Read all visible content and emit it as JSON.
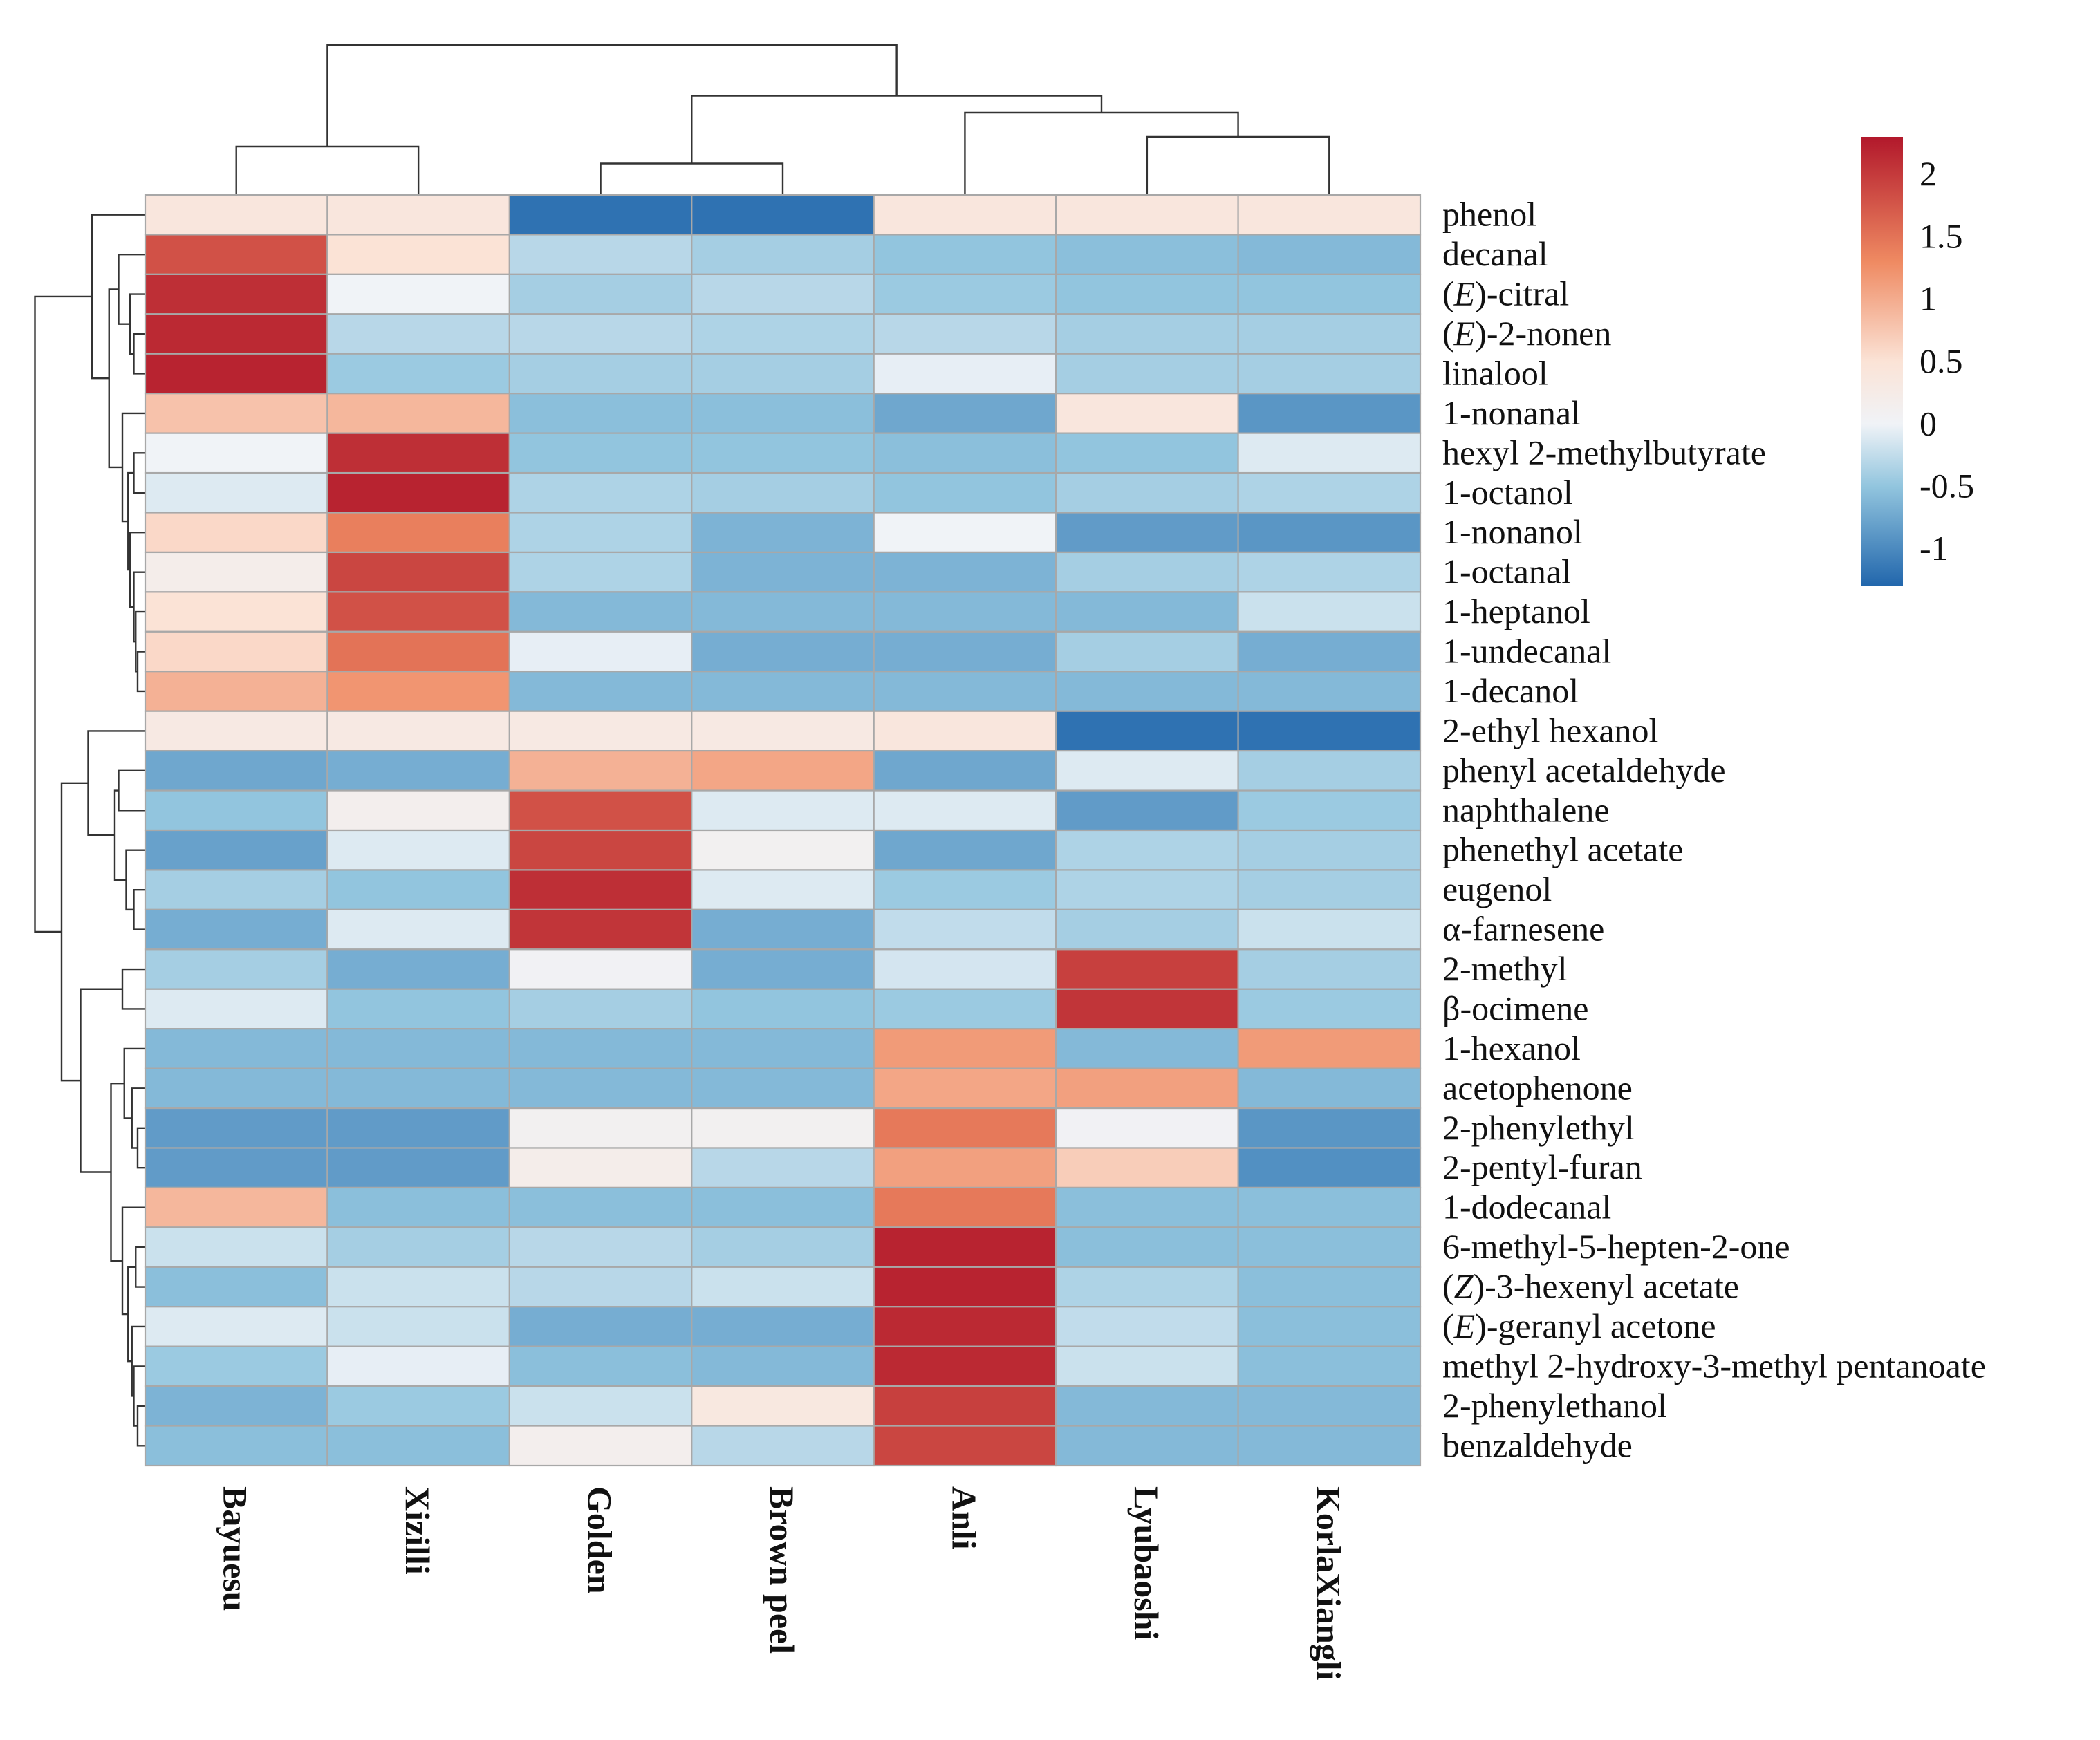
{
  "chart_data": {
    "type": "heatmap",
    "title": "",
    "columns": [
      "Bayuesu",
      "Xizilli",
      "Golden",
      "Brown peel",
      "Anli",
      "Lyubaoshi",
      "KorlaXiangli"
    ],
    "rows": [
      "phenol",
      "decanal",
      "(E)-citral",
      "(E)-2-nonen",
      "linalool",
      "1-nonanal",
      "hexyl 2-methylbutyrate",
      "1-octanol",
      "1-nonanol",
      "1-octanal",
      "1-heptanol",
      "1-undecanal",
      "1-decanol",
      "2-ethyl hexanol",
      "phenyl acetaldehyde",
      "naphthalene",
      "phenethyl acetate",
      "eugenol",
      "α-farnesene",
      "2-methyl",
      "β-ocimene",
      "1-hexanol",
      "acetophenone",
      "2-phenylethyl",
      "2-pentyl-furan",
      "1-dodecanal",
      "6-methyl-5-hepten-2-one",
      "(Z)-3-hexenyl acetate",
      "(E)-geranyl acetone",
      "methyl 2-hydroxy-3-methyl pentanoate",
      "2-phenylethanol",
      "benzaldehyde"
    ],
    "values": [
      [
        0.4,
        0.4,
        -1.2,
        -1.2,
        0.4,
        0.4,
        0.4
      ],
      [
        1.8,
        0.5,
        -0.3,
        -0.4,
        -0.5,
        -0.55,
        -0.6
      ],
      [
        2.1,
        0.0,
        -0.4,
        -0.3,
        -0.45,
        -0.5,
        -0.5
      ],
      [
        2.15,
        -0.3,
        -0.3,
        -0.35,
        -0.3,
        -0.4,
        -0.4
      ],
      [
        2.2,
        -0.45,
        -0.4,
        -0.4,
        -0.05,
        -0.4,
        -0.4
      ],
      [
        0.8,
        0.9,
        -0.55,
        -0.55,
        -0.75,
        0.4,
        -0.9
      ],
      [
        0.0,
        2.1,
        -0.5,
        -0.5,
        -0.55,
        -0.5,
        -0.1
      ],
      [
        -0.1,
        2.2,
        -0.35,
        -0.4,
        -0.5,
        -0.4,
        -0.35
      ],
      [
        0.6,
        1.4,
        -0.35,
        -0.65,
        0.0,
        -0.85,
        -0.9
      ],
      [
        0.2,
        1.9,
        -0.35,
        -0.65,
        -0.65,
        -0.4,
        -0.35
      ],
      [
        0.5,
        1.8,
        -0.6,
        -0.6,
        -0.6,
        -0.6,
        -0.2
      ],
      [
        0.6,
        1.5,
        -0.05,
        -0.7,
        -0.7,
        -0.4,
        -0.7
      ],
      [
        0.95,
        1.2,
        -0.6,
        -0.6,
        -0.6,
        -0.6,
        -0.6
      ],
      [
        0.3,
        0.3,
        0.3,
        0.3,
        0.4,
        -1.2,
        -1.2
      ],
      [
        -0.75,
        -0.7,
        0.95,
        1.05,
        -0.75,
        -0.1,
        -0.4
      ],
      [
        -0.5,
        0.15,
        1.8,
        -0.1,
        -0.1,
        -0.85,
        -0.45
      ],
      [
        -0.8,
        -0.1,
        1.9,
        0.1,
        -0.75,
        -0.35,
        -0.4
      ],
      [
        -0.4,
        -0.5,
        2.1,
        -0.1,
        -0.45,
        -0.35,
        -0.4
      ],
      [
        -0.7,
        -0.1,
        2.05,
        -0.7,
        -0.25,
        -0.4,
        -0.2
      ],
      [
        -0.4,
        -0.7,
        0.05,
        -0.7,
        -0.15,
        1.95,
        -0.4
      ],
      [
        -0.1,
        -0.5,
        -0.4,
        -0.5,
        -0.45,
        2.05,
        -0.45
      ],
      [
        -0.6,
        -0.6,
        -0.6,
        -0.6,
        1.15,
        -0.6,
        1.15
      ],
      [
        -0.6,
        -0.6,
        -0.6,
        -0.6,
        1.05,
        1.1,
        -0.6
      ],
      [
        -0.85,
        -0.85,
        0.1,
        0.1,
        1.45,
        0.05,
        -0.9
      ],
      [
        -0.85,
        -0.85,
        0.2,
        -0.3,
        1.1,
        0.7,
        -0.95
      ],
      [
        0.9,
        -0.55,
        -0.55,
        -0.55,
        1.45,
        -0.55,
        -0.55
      ],
      [
        -0.2,
        -0.4,
        -0.3,
        -0.4,
        2.2,
        -0.55,
        -0.55
      ],
      [
        -0.55,
        -0.2,
        -0.3,
        -0.2,
        2.2,
        -0.35,
        -0.55
      ],
      [
        -0.1,
        -0.2,
        -0.7,
        -0.7,
        2.15,
        -0.25,
        -0.55
      ],
      [
        -0.45,
        -0.05,
        -0.55,
        -0.6,
        2.15,
        -0.2,
        -0.55
      ],
      [
        -0.65,
        -0.45,
        -0.2,
        0.35,
        1.95,
        -0.6,
        -0.6
      ],
      [
        -0.55,
        -0.55,
        0.15,
        -0.3,
        1.9,
        -0.6,
        -0.6
      ]
    ],
    "color_scale": {
      "min": -1.3,
      "max": 2.3,
      "stops": [
        {
          "value": -1.3,
          "color": "#2166ac"
        },
        {
          "value": -0.5,
          "color": "#92c5de"
        },
        {
          "value": 0.0,
          "color": "#f0f3f7"
        },
        {
          "value": 0.5,
          "color": "#fbe3d6"
        },
        {
          "value": 1.3,
          "color": "#ef8a62"
        },
        {
          "value": 2.3,
          "color": "#b2182b"
        }
      ],
      "ticks": [
        2,
        1.5,
        1,
        0.5,
        0,
        -0.5,
        -1
      ]
    },
    "tick_labels": [
      "2",
      "1.5",
      "1",
      "0.5",
      "0",
      "-0.5",
      "-1"
    ],
    "column_dendrogram": "((Bayuesu,Xizilli),((Golden,Brown peel),(Anli,(Lyubaoshi,KorlaXiangli))))",
    "row_dendrogram": "present (hierarchical clustering of compounds)"
  }
}
